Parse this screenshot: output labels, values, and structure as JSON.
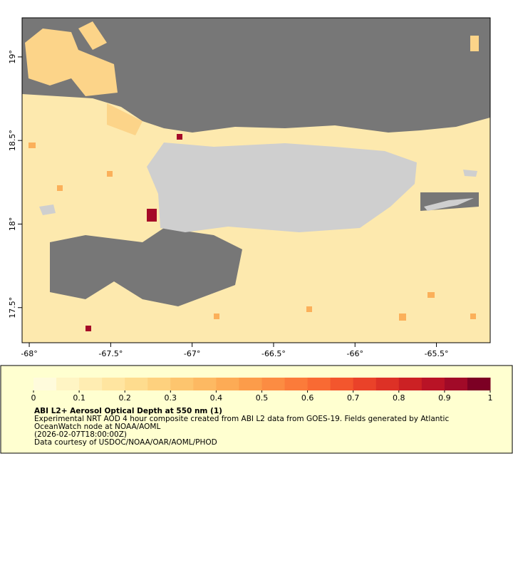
{
  "map": {
    "xaxis": {
      "lim": [
        -68.044,
        -65.17
      ],
      "ticks": [
        {
          "value": -68,
          "label": "-68°"
        },
        {
          "value": -67.5,
          "label": "-67.5°"
        },
        {
          "value": -67,
          "label": "-67°"
        },
        {
          "value": -66.5,
          "label": "-66.5°"
        },
        {
          "value": -66,
          "label": "-66°"
        },
        {
          "value": -65.5,
          "label": "-65.5°"
        }
      ]
    },
    "yaxis": {
      "lim": [
        17.29,
        19.234
      ],
      "ticks": [
        {
          "value": 19,
          "label": "19°"
        },
        {
          "value": 18.5,
          "label": "18.5°"
        },
        {
          "value": 18,
          "label": "18°"
        },
        {
          "value": 17.5,
          "label": "17.5°"
        }
      ]
    },
    "colorbar": {
      "lim": [
        0,
        1
      ],
      "ticks": [
        0,
        0.1,
        0.2,
        0.3,
        0.4,
        0.5,
        0.6,
        0.7,
        0.8,
        0.9,
        1
      ],
      "colors": [
        "#fffbdc",
        "#fff5c4",
        "#ffedb2",
        "#ffe5a0",
        "#fedc8e",
        "#fed17e",
        "#fdc56e",
        "#fdb962",
        "#fdab55",
        "#fc9c4a",
        "#fc8c42",
        "#fb7b3a",
        "#f96a33",
        "#f3562d",
        "#ea4229",
        "#dd3126",
        "#cc2124",
        "#b91326",
        "#a10a28",
        "#7c0024"
      ]
    },
    "caption": {
      "title": "ABI L2+ Aerosol Optical Depth at 550 nm (1)",
      "lines": [
        "Experimental NRT AOD 4 hour composite created from ABI L2 data from GOES-19. Fields generated by Atlantic",
        "OceanWatch node at NOAA/AOML",
        "(2026-02-07T18:00:00Z)",
        "Data courtesy of USDOC/NOAA/OAR/AOML/PHOD"
      ]
    }
  }
}
